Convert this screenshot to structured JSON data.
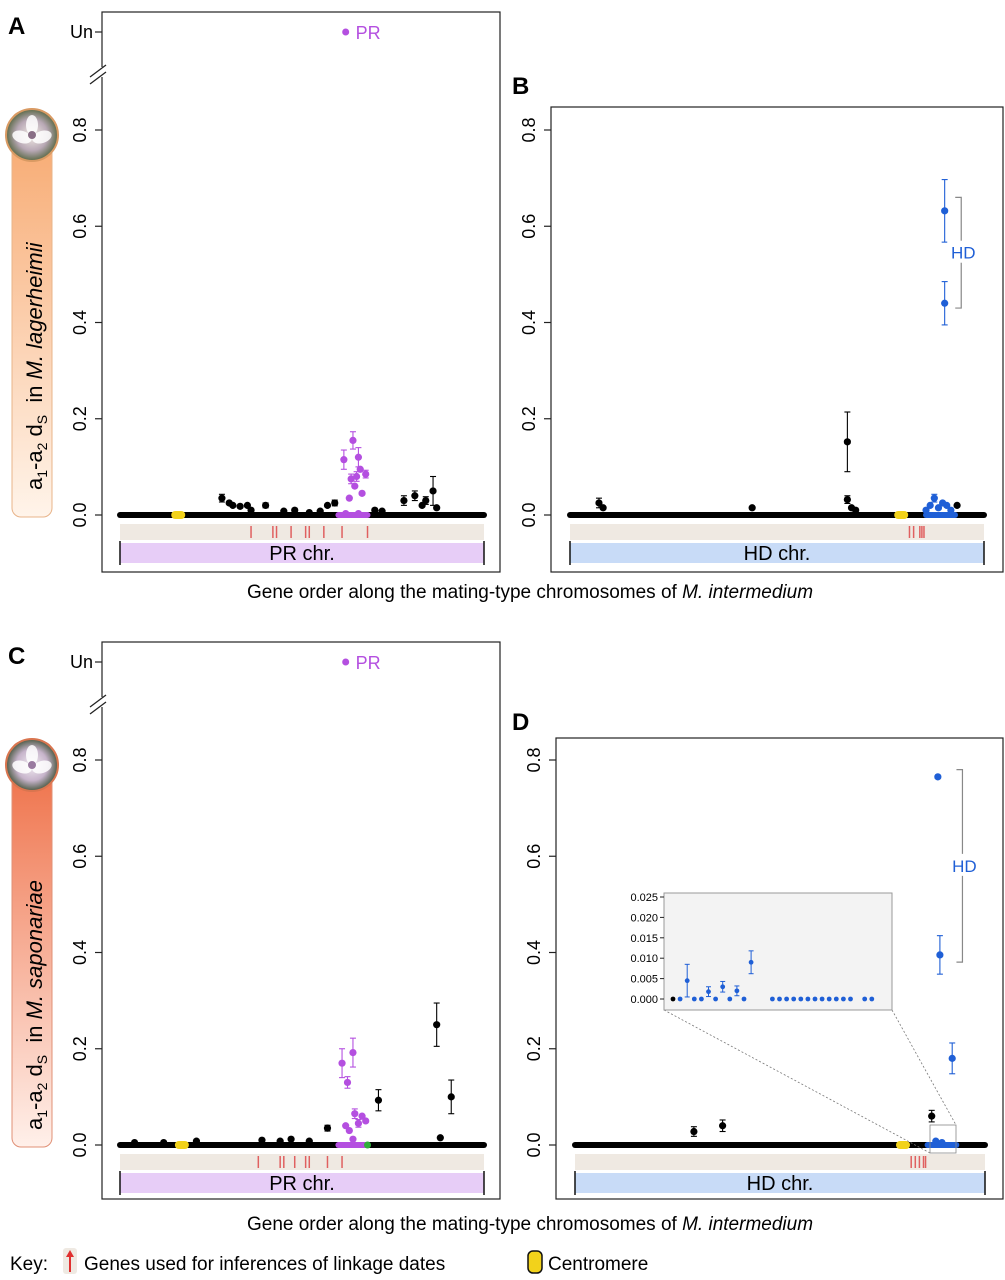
{
  "figure": {
    "x_caption_prefix": "Gene order along the mating-type chromosomes of ",
    "x_caption_species": "M. intermedium",
    "key": {
      "label": "Key:",
      "genes_text": "Genes used for inferences of linkage dates",
      "centromere_text": "Centromere"
    },
    "row_labels": [
      {
        "prefix": "a",
        "sub1": "1",
        "dash": "-a",
        "sub2": "2",
        "mid": " d",
        "subS": "S",
        "in": "  in ",
        "species": "M. lagerheimii"
      },
      {
        "prefix": "a",
        "sub1": "1",
        "dash": "-a",
        "sub2": "2",
        "mid": " d",
        "subS": "S",
        "in": "  in ",
        "species": "M. saponariae"
      }
    ]
  },
  "colors": {
    "pr": "#b44fe0",
    "hd": "#1f5fd6",
    "points": "#000000",
    "centromere": "#f2d21b",
    "green": "#2fae3a",
    "linkage_tick": "#e06060",
    "pr_bar": "#e7cdf7",
    "hd_bar": "#c8dbf7",
    "track": "#efe9e2",
    "row1_label_bg": "#f9c49c",
    "row2_label_bg": "#f08a6a"
  },
  "chart_data": [
    {
      "panel": "A",
      "type": "scatter",
      "chromosome_label": "PR chr.",
      "yticks": [
        "0.0",
        "0.2",
        "0.4",
        "0.6",
        "0.8"
      ],
      "ylim": [
        0,
        0.85
      ],
      "unknown_tick": "Un",
      "unknown_point": {
        "x": 0.62,
        "label": "PR"
      },
      "xlabel": "Gene order along the mating-type chromosomes of M. intermedium",
      "baseline": {
        "start": 0.0,
        "end": 1.0
      },
      "centromere": 0.16,
      "linkage_ticks": [
        0.36,
        0.42,
        0.43,
        0.47,
        0.51,
        0.52,
        0.56,
        0.61,
        0.68
      ],
      "points": [
        {
          "x": 0.28,
          "y": 0.035,
          "e": 0.008,
          "c": "k"
        },
        {
          "x": 0.3,
          "y": 0.025,
          "e": 0,
          "c": "k"
        },
        {
          "x": 0.31,
          "y": 0.02,
          "e": 0,
          "c": "k"
        },
        {
          "x": 0.33,
          "y": 0.018,
          "e": 0,
          "c": "k"
        },
        {
          "x": 0.35,
          "y": 0.02,
          "e": 0,
          "c": "k"
        },
        {
          "x": 0.36,
          "y": 0.01,
          "e": 0,
          "c": "k"
        },
        {
          "x": 0.4,
          "y": 0.02,
          "e": 0.005,
          "c": "k"
        },
        {
          "x": 0.45,
          "y": 0.008,
          "e": 0,
          "c": "k"
        },
        {
          "x": 0.48,
          "y": 0.01,
          "e": 0,
          "c": "k"
        },
        {
          "x": 0.52,
          "y": 0.005,
          "e": 0,
          "c": "k"
        },
        {
          "x": 0.55,
          "y": 0.008,
          "e": 0,
          "c": "k"
        },
        {
          "x": 0.57,
          "y": 0.02,
          "e": 0,
          "c": "k"
        },
        {
          "x": 0.59,
          "y": 0.025,
          "e": 0.006,
          "c": "k"
        },
        {
          "x": 0.615,
          "y": 0.115,
          "e": 0.02,
          "c": "pr"
        },
        {
          "x": 0.63,
          "y": 0.035,
          "e": 0,
          "c": "pr"
        },
        {
          "x": 0.635,
          "y": 0.075,
          "e": 0.01,
          "c": "pr"
        },
        {
          "x": 0.64,
          "y": 0.155,
          "e": 0.018,
          "c": "pr"
        },
        {
          "x": 0.645,
          "y": 0.06,
          "e": 0,
          "c": "pr"
        },
        {
          "x": 0.65,
          "y": 0.08,
          "e": 0.01,
          "c": "pr"
        },
        {
          "x": 0.655,
          "y": 0.12,
          "e": 0.02,
          "c": "pr"
        },
        {
          "x": 0.66,
          "y": 0.095,
          "e": 0,
          "c": "pr"
        },
        {
          "x": 0.665,
          "y": 0.045,
          "e": 0,
          "c": "pr"
        },
        {
          "x": 0.675,
          "y": 0.085,
          "e": 0.008,
          "c": "pr"
        },
        {
          "x": 0.62,
          "y": 0.003,
          "e": 0,
          "c": "pr"
        },
        {
          "x": 0.655,
          "y": 0.003,
          "e": 0,
          "c": "pr"
        },
        {
          "x": 0.7,
          "y": 0.01,
          "e": 0,
          "c": "k"
        },
        {
          "x": 0.72,
          "y": 0.008,
          "e": 0,
          "c": "k"
        },
        {
          "x": 0.78,
          "y": 0.03,
          "e": 0.01,
          "c": "k"
        },
        {
          "x": 0.81,
          "y": 0.04,
          "e": 0.01,
          "c": "k"
        },
        {
          "x": 0.83,
          "y": 0.02,
          "e": 0,
          "c": "k"
        },
        {
          "x": 0.84,
          "y": 0.03,
          "e": 0.008,
          "c": "k"
        },
        {
          "x": 0.86,
          "y": 0.05,
          "e": 0.03,
          "c": "k"
        },
        {
          "x": 0.87,
          "y": 0.015,
          "e": 0,
          "c": "k"
        }
      ]
    },
    {
      "panel": "B",
      "type": "scatter",
      "chromosome_label": "HD chr.",
      "yticks": [
        "0.0",
        "0.2",
        "0.4",
        "0.6",
        "0.8"
      ],
      "ylim": [
        -0.12,
        0.85
      ],
      "group_label": "HD",
      "bracket": [
        0.43,
        0.66
      ],
      "baseline": {
        "start": 0.0,
        "end": 1.0
      },
      "centromere": 0.8,
      "linkage_ticks": [
        0.82,
        0.83,
        0.845,
        0.85,
        0.855
      ],
      "points": [
        {
          "x": 0.07,
          "y": 0.025,
          "e": 0.01,
          "c": "k"
        },
        {
          "x": 0.08,
          "y": 0.015,
          "e": 0,
          "c": "k"
        },
        {
          "x": 0.44,
          "y": 0.015,
          "e": 0,
          "c": "k"
        },
        {
          "x": 0.67,
          "y": 0.152,
          "e": 0.062,
          "c": "k"
        },
        {
          "x": 0.67,
          "y": 0.032,
          "e": 0.008,
          "c": "k"
        },
        {
          "x": 0.68,
          "y": 0.015,
          "e": 0,
          "c": "k"
        },
        {
          "x": 0.69,
          "y": 0.01,
          "e": 0,
          "c": "k"
        },
        {
          "x": 0.86,
          "y": 0.01,
          "e": 0,
          "c": "hd"
        },
        {
          "x": 0.87,
          "y": 0.02,
          "e": 0,
          "c": "hd"
        },
        {
          "x": 0.88,
          "y": 0.035,
          "e": 0.008,
          "c": "hd"
        },
        {
          "x": 0.89,
          "y": 0.015,
          "e": 0,
          "c": "hd"
        },
        {
          "x": 0.9,
          "y": 0.025,
          "e": 0,
          "c": "hd"
        },
        {
          "x": 0.91,
          "y": 0.02,
          "e": 0,
          "c": "hd"
        },
        {
          "x": 0.92,
          "y": 0.01,
          "e": 0,
          "c": "hd"
        },
        {
          "x": 0.935,
          "y": 0.02,
          "e": 0,
          "c": "k"
        },
        {
          "x": 0.905,
          "y": 0.632,
          "e": 0.065,
          "c": "hd"
        },
        {
          "x": 0.905,
          "y": 0.44,
          "e": 0.045,
          "c": "hd"
        }
      ]
    },
    {
      "panel": "C",
      "type": "scatter",
      "chromosome_label": "PR chr.",
      "yticks": [
        "0.0",
        "0.2",
        "0.4",
        "0.6",
        "0.8"
      ],
      "ylim": [
        0,
        0.85
      ],
      "unknown_tick": "Un",
      "unknown_point": {
        "x": 0.62,
        "label": "PR"
      },
      "baseline": {
        "start": 0.0,
        "end": 1.0
      },
      "centromere": 0.17,
      "green_marker": 0.68,
      "linkage_ticks": [
        0.38,
        0.44,
        0.45,
        0.48,
        0.51,
        0.52,
        0.57,
        0.61
      ],
      "points": [
        {
          "x": 0.04,
          "y": 0.005,
          "e": 0,
          "c": "k"
        },
        {
          "x": 0.12,
          "y": 0.005,
          "e": 0,
          "c": "k"
        },
        {
          "x": 0.21,
          "y": 0.008,
          "e": 0,
          "c": "k"
        },
        {
          "x": 0.39,
          "y": 0.01,
          "e": 0,
          "c": "k"
        },
        {
          "x": 0.44,
          "y": 0.008,
          "e": 0,
          "c": "k"
        },
        {
          "x": 0.47,
          "y": 0.012,
          "e": 0,
          "c": "k"
        },
        {
          "x": 0.52,
          "y": 0.008,
          "e": 0,
          "c": "k"
        },
        {
          "x": 0.57,
          "y": 0.035,
          "e": 0.006,
          "c": "k"
        },
        {
          "x": 0.61,
          "y": 0.17,
          "e": 0.03,
          "c": "pr"
        },
        {
          "x": 0.625,
          "y": 0.13,
          "e": 0.012,
          "c": "pr"
        },
        {
          "x": 0.64,
          "y": 0.192,
          "e": 0.03,
          "c": "pr"
        },
        {
          "x": 0.62,
          "y": 0.04,
          "e": 0,
          "c": "pr"
        },
        {
          "x": 0.63,
          "y": 0.03,
          "e": 0,
          "c": "pr"
        },
        {
          "x": 0.645,
          "y": 0.065,
          "e": 0.01,
          "c": "pr"
        },
        {
          "x": 0.655,
          "y": 0.045,
          "e": 0.008,
          "c": "pr"
        },
        {
          "x": 0.665,
          "y": 0.06,
          "e": 0,
          "c": "pr"
        },
        {
          "x": 0.675,
          "y": 0.05,
          "e": 0,
          "c": "pr"
        },
        {
          "x": 0.64,
          "y": 0.012,
          "e": 0,
          "c": "pr"
        },
        {
          "x": 0.71,
          "y": 0.093,
          "e": 0.022,
          "c": "k"
        },
        {
          "x": 0.87,
          "y": 0.25,
          "e": 0.045,
          "c": "k"
        },
        {
          "x": 0.88,
          "y": 0.015,
          "e": 0,
          "c": "k"
        },
        {
          "x": 0.91,
          "y": 0.1,
          "e": 0.035,
          "c": "k"
        }
      ]
    },
    {
      "panel": "D",
      "type": "scatter",
      "chromosome_label": "HD chr.",
      "yticks": [
        "0.0",
        "0.2",
        "0.4",
        "0.6",
        "0.8"
      ],
      "ylim": [
        -0.12,
        0.85
      ],
      "group_label": "HD",
      "bracket": [
        0.38,
        0.78
      ],
      "baseline": {
        "start": 0.0,
        "end": 1.0
      },
      "centromere": 0.8,
      "linkage_ticks": [
        0.82,
        0.83,
        0.84,
        0.85,
        0.855
      ],
      "points": [
        {
          "x": 0.29,
          "y": 0.028,
          "e": 0.01,
          "c": "k"
        },
        {
          "x": 0.36,
          "y": 0.04,
          "e": 0.012,
          "c": "k"
        },
        {
          "x": 0.87,
          "y": 0.06,
          "e": 0.012,
          "c": "k"
        },
        {
          "x": 0.885,
          "y": 0.765,
          "e": 0,
          "c": "hd"
        },
        {
          "x": 0.89,
          "y": 0.395,
          "e": 0.04,
          "c": "hd"
        },
        {
          "x": 0.92,
          "y": 0.18,
          "e": 0.032,
          "c": "hd"
        },
        {
          "x": 0.88,
          "y": 0.008,
          "e": 0,
          "c": "hd"
        },
        {
          "x": 0.895,
          "y": 0.005,
          "e": 0,
          "c": "hd"
        }
      ],
      "inset": {
        "yticks": [
          "0.000",
          "0.005",
          "0.010",
          "0.015",
          "0.020",
          "0.025"
        ],
        "ylim": [
          0,
          0.025
        ],
        "points": [
          {
            "x": 1,
            "y": 0,
            "e": 0,
            "c": "k"
          },
          {
            "x": 2,
            "y": 0,
            "e": 0,
            "c": "hd"
          },
          {
            "x": 3,
            "y": 0.0045,
            "e": 0.004,
            "c": "hd"
          },
          {
            "x": 4,
            "y": 0,
            "e": 0,
            "c": "hd"
          },
          {
            "x": 5,
            "y": 0,
            "e": 0,
            "c": "hd"
          },
          {
            "x": 6,
            "y": 0.0018,
            "e": 0.0012,
            "c": "hd"
          },
          {
            "x": 7,
            "y": 0,
            "e": 0,
            "c": "hd"
          },
          {
            "x": 8,
            "y": 0.003,
            "e": 0.0013,
            "c": "hd"
          },
          {
            "x": 9,
            "y": 0,
            "e": 0,
            "c": "hd"
          },
          {
            "x": 10,
            "y": 0.002,
            "e": 0.0012,
            "c": "hd"
          },
          {
            "x": 11,
            "y": 0,
            "e": 0,
            "c": "hd"
          },
          {
            "x": 12,
            "y": 0.009,
            "e": 0.0028,
            "c": "hd"
          },
          {
            "x": 15,
            "y": 0,
            "e": 0,
            "c": "hd"
          },
          {
            "x": 16,
            "y": 0,
            "e": 0,
            "c": "hd"
          },
          {
            "x": 17,
            "y": 0,
            "e": 0,
            "c": "hd"
          },
          {
            "x": 18,
            "y": 0,
            "e": 0,
            "c": "hd"
          },
          {
            "x": 19,
            "y": 0,
            "e": 0,
            "c": "hd"
          },
          {
            "x": 20,
            "y": 0,
            "e": 0,
            "c": "hd"
          },
          {
            "x": 21,
            "y": 0,
            "e": 0,
            "c": "hd"
          },
          {
            "x": 22,
            "y": 0,
            "e": 0,
            "c": "hd"
          },
          {
            "x": 23,
            "y": 0,
            "e": 0,
            "c": "hd"
          },
          {
            "x": 24,
            "y": 0,
            "e": 0,
            "c": "hd"
          },
          {
            "x": 25,
            "y": 0,
            "e": 0,
            "c": "hd"
          },
          {
            "x": 26,
            "y": 0,
            "e": 0,
            "c": "hd"
          },
          {
            "x": 28,
            "y": 0,
            "e": 0,
            "c": "hd"
          },
          {
            "x": 29,
            "y": 0,
            "e": 0,
            "c": "hd"
          }
        ]
      }
    }
  ]
}
